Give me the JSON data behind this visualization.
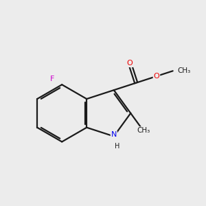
{
  "background_color": "#ececec",
  "bond_color": "#1a1a1a",
  "atom_colors": {
    "F": "#cc00cc",
    "N": "#0000ee",
    "O": "#ee0000",
    "C": "#1a1a1a",
    "H": "#1a1a1a"
  },
  "figsize": [
    3.0,
    3.0
  ],
  "dpi": 100,
  "xlim": [
    0,
    10
  ],
  "ylim": [
    0,
    10
  ]
}
